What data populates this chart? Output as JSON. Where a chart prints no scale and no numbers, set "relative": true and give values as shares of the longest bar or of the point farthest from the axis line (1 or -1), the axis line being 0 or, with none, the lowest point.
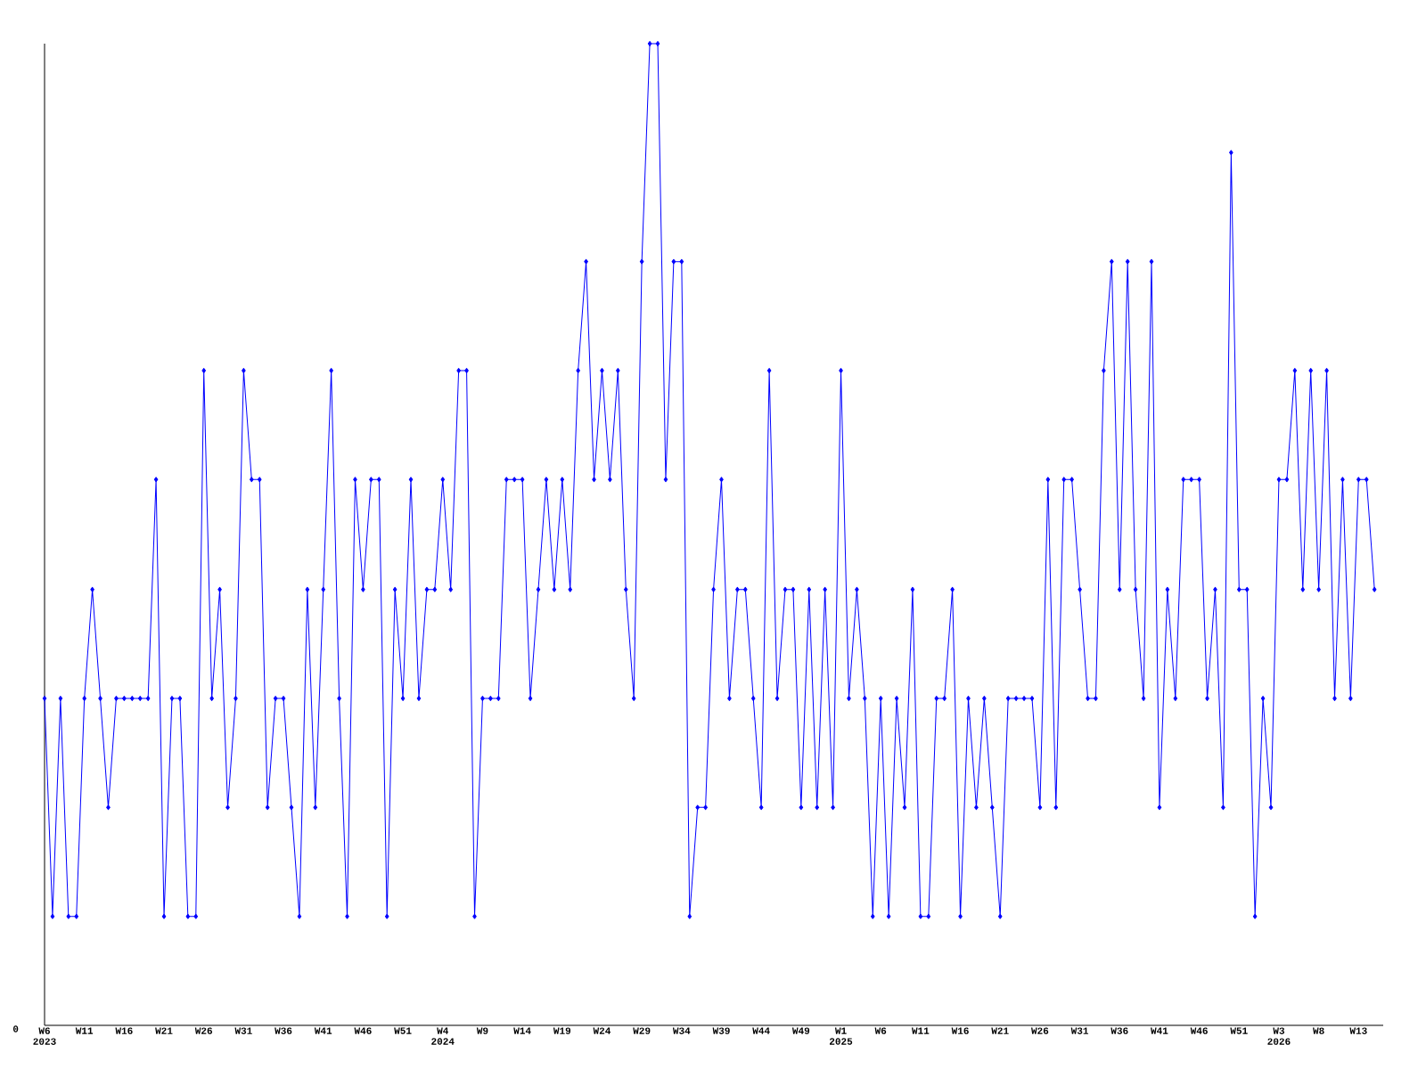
{
  "chart_data": {
    "type": "line",
    "relative": true,
    "color": "#0000ff",
    "marker": "diamond",
    "line_style": "solid",
    "categories": [
      "W6 2023",
      null,
      null,
      null,
      null,
      "W11",
      null,
      null,
      null,
      null,
      "W16",
      null,
      null,
      null,
      null,
      "W21",
      null,
      null,
      null,
      null,
      "W26",
      null,
      null,
      null,
      null,
      "W31",
      null,
      null,
      null,
      null,
      "W36",
      null,
      null,
      null,
      null,
      "W41",
      null,
      null,
      null,
      null,
      "W46",
      null,
      null,
      null,
      null,
      "W51",
      null,
      null,
      null,
      null,
      "W4 2024",
      null,
      null,
      null,
      null,
      "W9",
      null,
      null,
      null,
      null,
      "W14",
      null,
      null,
      null,
      null,
      "W19",
      null,
      null,
      null,
      null,
      "W24",
      null,
      null,
      null,
      null,
      "W29",
      null,
      null,
      null,
      null,
      "W34",
      null,
      null,
      null,
      null,
      "W39",
      null,
      null,
      null,
      null,
      "W44",
      null,
      null,
      null,
      null,
      "W49",
      null,
      null,
      null,
      null,
      "W1 2025",
      null,
      null,
      null,
      null,
      "W6",
      null,
      null,
      null,
      null,
      "W11",
      null,
      null,
      null,
      null,
      "W16",
      null,
      null,
      null,
      null,
      "W21",
      null,
      null,
      null,
      null,
      "W26",
      null,
      null,
      null,
      null,
      "W31",
      null,
      null,
      null,
      null,
      "W36",
      null,
      null,
      null,
      null,
      "W41",
      null,
      null,
      null,
      null,
      "W46",
      null,
      null,
      null,
      null,
      "W51",
      null,
      null,
      null,
      null,
      "W3 2026",
      null,
      null,
      null,
      null,
      "W8",
      null,
      null,
      null,
      null,
      "W13",
      null,
      null
    ],
    "values": [
      0.333,
      0.111,
      0.333,
      0.111,
      0.111,
      0.333,
      0.444,
      0.333,
      0.222,
      0.333,
      0.333,
      0.333,
      0.333,
      0.333,
      0.556,
      0.111,
      0.333,
      0.333,
      0.111,
      0.111,
      0.667,
      0.333,
      0.444,
      0.222,
      0.333,
      0.667,
      0.556,
      0.556,
      0.222,
      0.333,
      0.333,
      0.222,
      0.111,
      0.444,
      0.222,
      0.444,
      0.667,
      0.333,
      0.111,
      0.556,
      0.444,
      0.556,
      0.556,
      0.111,
      0.444,
      0.333,
      0.556,
      0.333,
      0.444,
      0.444,
      0.556,
      0.444,
      0.667,
      0.667,
      0.111,
      0.333,
      0.333,
      0.333,
      0.556,
      0.556,
      0.556,
      0.333,
      0.444,
      0.556,
      0.444,
      0.556,
      0.444,
      0.667,
      0.778,
      0.556,
      0.667,
      0.556,
      0.667,
      0.444,
      0.333,
      0.778,
      1,
      1,
      0.556,
      0.778,
      0.778,
      0.111,
      0.222,
      0.222,
      0.444,
      0.556,
      0.333,
      0.444,
      0.444,
      0.333,
      0.222,
      0.667,
      0.333,
      0.444,
      0.444,
      0.222,
      0.444,
      0.222,
      0.444,
      0.222,
      0.667,
      0.333,
      0.444,
      0.333,
      0.111,
      0.333,
      0.111,
      0.333,
      0.222,
      0.444,
      0.111,
      0.111,
      0.333,
      0.333,
      0.444,
      0.111,
      0.333,
      0.222,
      0.333,
      0.222,
      0.111,
      0.333,
      0.333,
      0.333,
      0.333,
      0.222,
      0.556,
      0.222,
      0.556,
      0.556,
      0.444,
      0.333,
      0.333,
      0.667,
      0.778,
      0.444,
      0.778,
      0.444,
      0.333,
      0.778,
      0.222,
      0.444,
      0.333,
      0.556,
      0.556,
      0.556,
      0.333,
      0.444,
      0.222,
      0.889,
      0.444,
      0.444,
      0.111,
      0.333,
      0.222,
      0.556,
      0.556,
      0.667,
      0.444,
      0.667,
      0.444,
      0.667,
      0.333,
      0.556,
      0.333,
      0.556,
      0.556,
      0.444
    ],
    "annotations": [
      "0"
    ]
  }
}
